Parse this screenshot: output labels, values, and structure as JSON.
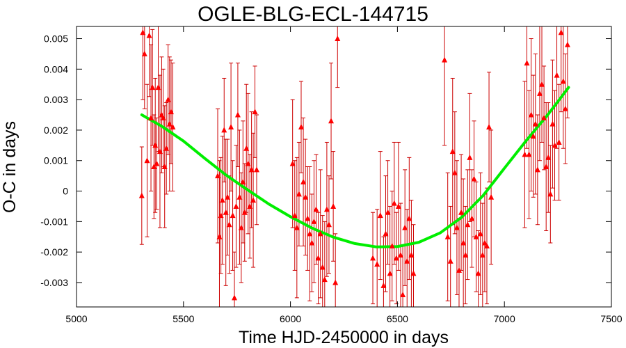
{
  "chart_data": {
    "type": "scatter",
    "title": "OGLE-BLG-ECL-144715",
    "xlabel": "Time HJD-2450000 in days",
    "ylabel": "O-C in days",
    "xlim": [
      5000,
      7500
    ],
    "ylim": [
      -0.0038,
      0.0054
    ],
    "grid": false,
    "x_ticks": [
      5000,
      5500,
      6000,
      6500,
      7000,
      7500
    ],
    "x_tick_labels": [
      "5000",
      "5500",
      "6000",
      "6500",
      "7000",
      "7500"
    ],
    "y_ticks": [
      0.005,
      0.004,
      0.003,
      0.002,
      0.001,
      0,
      -0.001,
      -0.002,
      -0.003
    ],
    "y_tick_labels": [
      "0.005",
      "0.004",
      "0.003",
      "0.002",
      "0.001",
      "0",
      "-0.001",
      "-0.002",
      "-0.003"
    ],
    "colors": {
      "points": "#ff0000",
      "errorbars": "#cc0000",
      "fit": "#00ee00",
      "frame": "#000000"
    },
    "series": [
      {
        "marker": "triangle",
        "x": [
          5305,
          5310,
          5318,
          5330,
          5340,
          5348,
          5355,
          5362,
          5368,
          5375,
          5382,
          5390,
          5398,
          5405,
          5412,
          5420,
          5428,
          5435,
          5442,
          5450,
          5660,
          5668,
          5675,
          5682,
          5690,
          5698,
          5706,
          5714,
          5722,
          5730,
          5738,
          5746,
          5754,
          5762,
          5770,
          5778,
          5786,
          5794,
          5802,
          5810,
          5818,
          5826,
          5834,
          5842,
          6010,
          6020,
          6030,
          6040,
          6050,
          6060,
          6070,
          6080,
          6090,
          6100,
          6110,
          6120,
          6130,
          6140,
          6150,
          6160,
          6170,
          6180,
          6190,
          6200,
          6210,
          6220,
          6385,
          6405,
          6420,
          6435,
          6445,
          6455,
          6465,
          6475,
          6485,
          6495,
          6505,
          6515,
          6525,
          6535,
          6545,
          6555,
          6565,
          6575,
          6720,
          6735,
          6748,
          6758,
          6768,
          6778,
          6788,
          6798,
          6808,
          6818,
          6828,
          6838,
          6848,
          6858,
          6868,
          6878,
          6888,
          6898,
          6908,
          6918,
          6928,
          6938,
          7095,
          7105,
          7115,
          7125,
          7135,
          7145,
          7155,
          7165,
          7175,
          7185,
          7195,
          7205,
          7215,
          7225,
          7235,
          7245,
          7255,
          7265,
          7275,
          7285,
          7295
        ],
        "y": [
          -0.00015,
          0.0052,
          0.0045,
          0.001,
          0.0051,
          0.0024,
          0.0034,
          0.0008,
          0.0015,
          0.0009,
          0.0034,
          0.0013,
          0.0025,
          0.0024,
          0.0008,
          0.0014,
          0.003,
          0.0022,
          0.0026,
          0.0021,
          0.0005,
          -0.0015,
          -0.0008,
          -0.0003,
          0.002,
          -0.0007,
          -0.0002,
          -0.0011,
          0.0021,
          -0.0008,
          -0.0035,
          -0.0005,
          0.0025,
          -0.0002,
          -0.0012,
          0.0003,
          -0.0007,
          0.0014,
          0.0009,
          -0.0005,
          0.0007,
          -0.0003,
          0.0026,
          0.0007,
          0.0009,
          -0.0008,
          -0.0012,
          -0.0001,
          0.0021,
          0.0003,
          -0.0002,
          -0.0009,
          -0.0014,
          -0.0017,
          -0.001,
          -0.0006,
          -0.0022,
          -0.0014,
          -0.0025,
          -0.0029,
          -0.0006,
          -0.0011,
          0.0023,
          -0.0005,
          -0.003,
          0.005,
          -0.0022,
          -0.0024,
          -0.0008,
          -0.0031,
          -0.0014,
          -0.0007,
          -0.0027,
          -0.0018,
          -0.0004,
          -0.0022,
          -0.0005,
          -0.0021,
          -0.0034,
          -0.0012,
          -0.0023,
          -0.0009,
          -0.0021,
          -0.0027,
          0.0043,
          -0.0015,
          -0.0023,
          0.0013,
          0.0006,
          -0.0012,
          -0.0026,
          -0.0007,
          -0.0017,
          -0.0021,
          -0.0011,
          0.0011,
          -0.0009,
          0.0004,
          -0.0015,
          -0.0027,
          -0.0014,
          -0.0021,
          -0.0017,
          -0.0018,
          0.0021,
          -0.0002,
          0.0012,
          0.0042,
          0.0012,
          0.0025,
          0.0018,
          0.0022,
          0.0007,
          0.0032,
          0.0035,
          0.0024,
          0.0008,
          0.0011,
          -0.0001,
          0.0022,
          0.0015,
          0.0038,
          0.0016,
          0.0052,
          0.0036,
          0.0027,
          0.0048
        ],
        "err": [
          0.0016,
          0.0022,
          0.0018,
          0.0025,
          0.002,
          0.0024,
          0.0019,
          0.0017,
          0.0022,
          0.0015,
          0.0021,
          0.0025,
          0.0019,
          0.0016,
          0.002,
          0.0015,
          0.0018,
          0.0022,
          0.0017,
          0.0021,
          0.0022,
          0.0025,
          0.0019,
          0.0021,
          0.0017,
          0.0024,
          0.0019,
          0.0016,
          0.0021,
          0.0018,
          0.0015,
          0.002,
          0.0017,
          0.0022,
          0.0018,
          0.002,
          0.0016,
          0.0021,
          0.0023,
          0.0017,
          0.0019,
          0.0022,
          0.0015,
          0.0018,
          0.0021,
          0.0018,
          0.0023,
          0.0017,
          0.0015,
          0.0021,
          0.0019,
          0.0017,
          0.0022,
          0.0016,
          0.002,
          0.0018,
          0.0015,
          0.0021,
          0.0017,
          0.0019,
          0.0022,
          0.0016,
          0.0019,
          0.0018,
          0.0016,
          0.0016,
          0.0015,
          0.0018,
          0.0021,
          0.0016,
          0.0019,
          0.0017,
          0.0022,
          0.0018,
          0.002,
          0.0015,
          0.0021,
          0.0017,
          0.0016,
          0.0019,
          0.0017,
          0.002,
          0.0018,
          0.0016,
          0.0028,
          0.0021,
          0.0018,
          0.0024,
          0.002,
          0.0022,
          0.0017,
          0.0019,
          0.0021,
          0.0016,
          0.0018,
          0.0021,
          0.0016,
          0.0019,
          0.0018,
          0.0014,
          0.002,
          0.0017,
          0.0016,
          0.0019,
          0.0018,
          0.0022,
          0.0024,
          0.0028,
          0.0021,
          0.0025,
          0.002,
          0.0023,
          0.0018,
          0.0022,
          0.0019,
          0.0017,
          0.0021,
          0.0018,
          0.0016,
          0.0021,
          0.0018,
          0.0024,
          0.0019,
          0.0026,
          0.0022,
          0.0018,
          0.0024
        ]
      }
    ],
    "fit": {
      "type": "quadratic",
      "x": [
        5305,
        5400,
        5500,
        5600,
        5700,
        5800,
        5900,
        6000,
        6100,
        6200,
        6300,
        6400,
        6500,
        6600,
        6700,
        6800,
        6900,
        7000,
        7100,
        7200,
        7300
      ],
      "y": [
        0.0025,
        0.00212,
        0.00164,
        0.00107,
        0.00052,
        4e-05,
        -0.00043,
        -0.00084,
        -0.00121,
        -0.00151,
        -0.00172,
        -0.00183,
        -0.00182,
        -0.00168,
        -0.00137,
        -0.00086,
        -0.00015,
        0.00075,
        0.00164,
        0.00248,
        0.0034
      ]
    }
  }
}
